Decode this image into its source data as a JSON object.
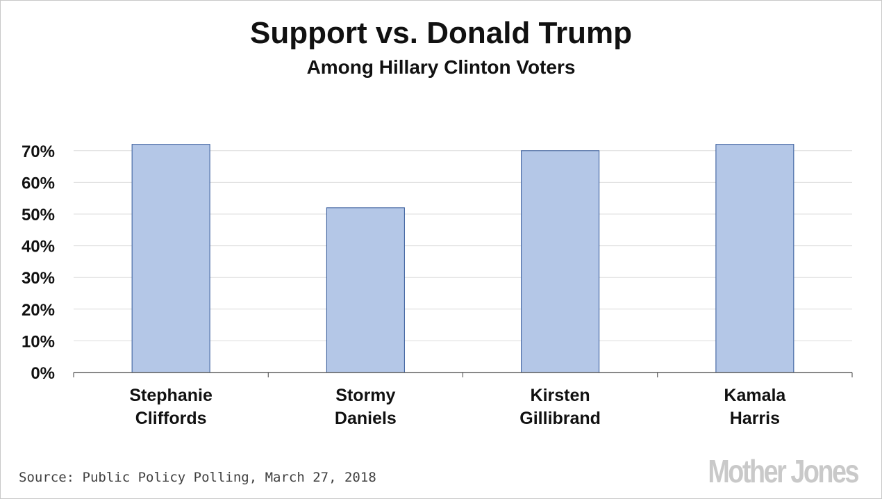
{
  "chart_data": {
    "type": "bar",
    "title": "Support vs. Donald Trump",
    "subtitle": "Among Hillary Clinton Voters",
    "categories": [
      [
        "Stephanie",
        "Cliffords"
      ],
      [
        "Stormy",
        "Daniels"
      ],
      [
        "Kirsten",
        "Gillibrand"
      ],
      [
        "Kamala",
        "Harris"
      ]
    ],
    "values": [
      72,
      52,
      70,
      72
    ],
    "ylim": [
      0,
      70
    ],
    "yticks": [
      0,
      10,
      20,
      30,
      40,
      50,
      60,
      70
    ],
    "ytick_format": "percent",
    "xlabel": "",
    "ylabel": "",
    "grid": true,
    "bar_color": "#b4c7e7",
    "bar_edge_color": "#2f5597"
  },
  "footer": {
    "source": "Source: Public Policy Polling, March 27, 2018",
    "logo": "Mother Jones"
  }
}
